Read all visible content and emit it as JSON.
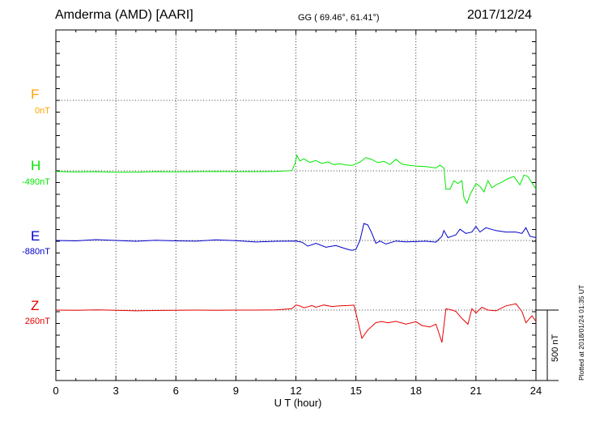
{
  "header": {
    "station": "Amderma (AMD)  [AARI]",
    "coords": "GG ( 69.46°,  61.41°)",
    "date": "2017/12/24"
  },
  "plotted_note": "Plotted at 2018/01/24 01:35 UT",
  "scale_bar_label": "500 nT",
  "components": [
    {
      "name": "F",
      "baseline": "0nT",
      "color": "#ffa500"
    },
    {
      "name": "H",
      "baseline": "-490nT",
      "color": "#00e800"
    },
    {
      "name": "E",
      "baseline": "-880nT",
      "color": "#0000cc"
    },
    {
      "name": "Z",
      "baseline": "260nT",
      "color": "#e60000"
    }
  ],
  "chart_data": {
    "type": "line",
    "title": "Amderma (AMD)  [AARI]",
    "xlabel": "U T (hour)",
    "xlim": [
      0,
      24
    ],
    "xticks": [
      "0",
      "3",
      "6",
      "9",
      "12",
      "15",
      "18",
      "21",
      "24"
    ],
    "grid": true,
    "scale_bar_nT": 500,
    "series": [
      {
        "name": "H",
        "color": "#00e800",
        "x": [
          0,
          1,
          2,
          3,
          4,
          5,
          6,
          7,
          8,
          9,
          10,
          11,
          11.8,
          11.95,
          12.05,
          12.2,
          12.4,
          12.7,
          13,
          13.3,
          13.6,
          13.9,
          14.2,
          14.5,
          14.8,
          15.0,
          15.2,
          15.5,
          15.8,
          16.1,
          16.4,
          16.7,
          17.0,
          17.3,
          17.7,
          18.0,
          18.5,
          19.0,
          19.2,
          19.4,
          19.5,
          19.7,
          19.9,
          20.1,
          20.3,
          20.4,
          20.55,
          20.7,
          20.85,
          21.0,
          21.2,
          21.4,
          21.6,
          21.8,
          22.0,
          22.3,
          22.6,
          22.9,
          23.2,
          23.4,
          23.6,
          23.8,
          24.0
        ],
        "values": [
          -494,
          -498,
          -496,
          -500,
          -499,
          -496,
          -497,
          -496,
          -494,
          -496,
          -496,
          -494,
          -488,
          -440,
          -380,
          -420,
          -405,
          -430,
          -417,
          -437,
          -427,
          -446,
          -440,
          -448,
          -452,
          -440,
          -428,
          -395,
          -410,
          -432,
          -423,
          -446,
          -408,
          -443,
          -452,
          -456,
          -460,
          -470,
          -450,
          -470,
          -620,
          -620,
          -560,
          -580,
          -560,
          -680,
          -720,
          -660,
          -620,
          -580,
          -600,
          -640,
          -560,
          -610,
          -590,
          -570,
          -545,
          -530,
          -590,
          -520,
          -530,
          -575,
          -620
        ]
      },
      {
        "name": "E",
        "color": "#0000cc",
        "x": [
          0,
          1,
          2,
          3,
          4,
          5,
          6,
          7,
          8,
          9,
          10,
          11,
          12,
          12.3,
          12.6,
          13,
          13.5,
          14,
          14.5,
          14.8,
          15.0,
          15.2,
          15.4,
          15.6,
          15.8,
          16.0,
          16.2,
          16.5,
          17,
          17.5,
          18,
          18.5,
          19.0,
          19.3,
          19.4,
          19.6,
          19.8,
          20.0,
          20.2,
          20.5,
          20.8,
          21.0,
          21.2,
          21.5,
          22,
          22.5,
          23,
          23.3,
          23.5,
          23.7,
          24
        ],
        "values": [
          -880,
          -883,
          -874,
          -880,
          -886,
          -878,
          -883,
          -885,
          -876,
          -882,
          -891,
          -886,
          -884,
          -892,
          -920,
          -900,
          -928,
          -916,
          -940,
          -950,
          -944,
          -880,
          -760,
          -770,
          -830,
          -900,
          -884,
          -905,
          -884,
          -890,
          -888,
          -885,
          -892,
          -850,
          -810,
          -860,
          -850,
          -840,
          -800,
          -830,
          -820,
          -780,
          -820,
          -790,
          -810,
          -820,
          -820,
          -830,
          -790,
          -850,
          -860
        ]
      },
      {
        "name": "Z",
        "color": "#e60000",
        "x": [
          0,
          1,
          2,
          3,
          4,
          5,
          6,
          7,
          8,
          9,
          10,
          11,
          11.8,
          12.0,
          12.2,
          12.4,
          12.8,
          13.0,
          13.4,
          13.8,
          14.2,
          14.6,
          14.9,
          15.1,
          15.3,
          15.6,
          16.0,
          16.3,
          16.6,
          17.0,
          17.5,
          18.0,
          18.3,
          18.7,
          19.0,
          19.3,
          19.5,
          19.8,
          20.0,
          20.3,
          20.6,
          20.8,
          21.0,
          21.3,
          21.6,
          22.0,
          22.5,
          23.0,
          23.3,
          23.5,
          23.8,
          24.0
        ],
        "values": [
          260,
          258,
          262,
          259,
          255,
          257,
          258,
          260,
          259,
          260,
          260,
          262,
          270,
          296,
          290,
          276,
          292,
          280,
          296,
          285,
          290,
          292,
          295,
          180,
          60,
          120,
          171,
          179,
          170,
          180,
          160,
          178,
          150,
          140,
          160,
          30,
          270,
          260,
          250,
          200,
          160,
          270,
          240,
          280,
          260,
          255,
          290,
          305,
          250,
          170,
          220,
          180
        ]
      }
    ]
  }
}
